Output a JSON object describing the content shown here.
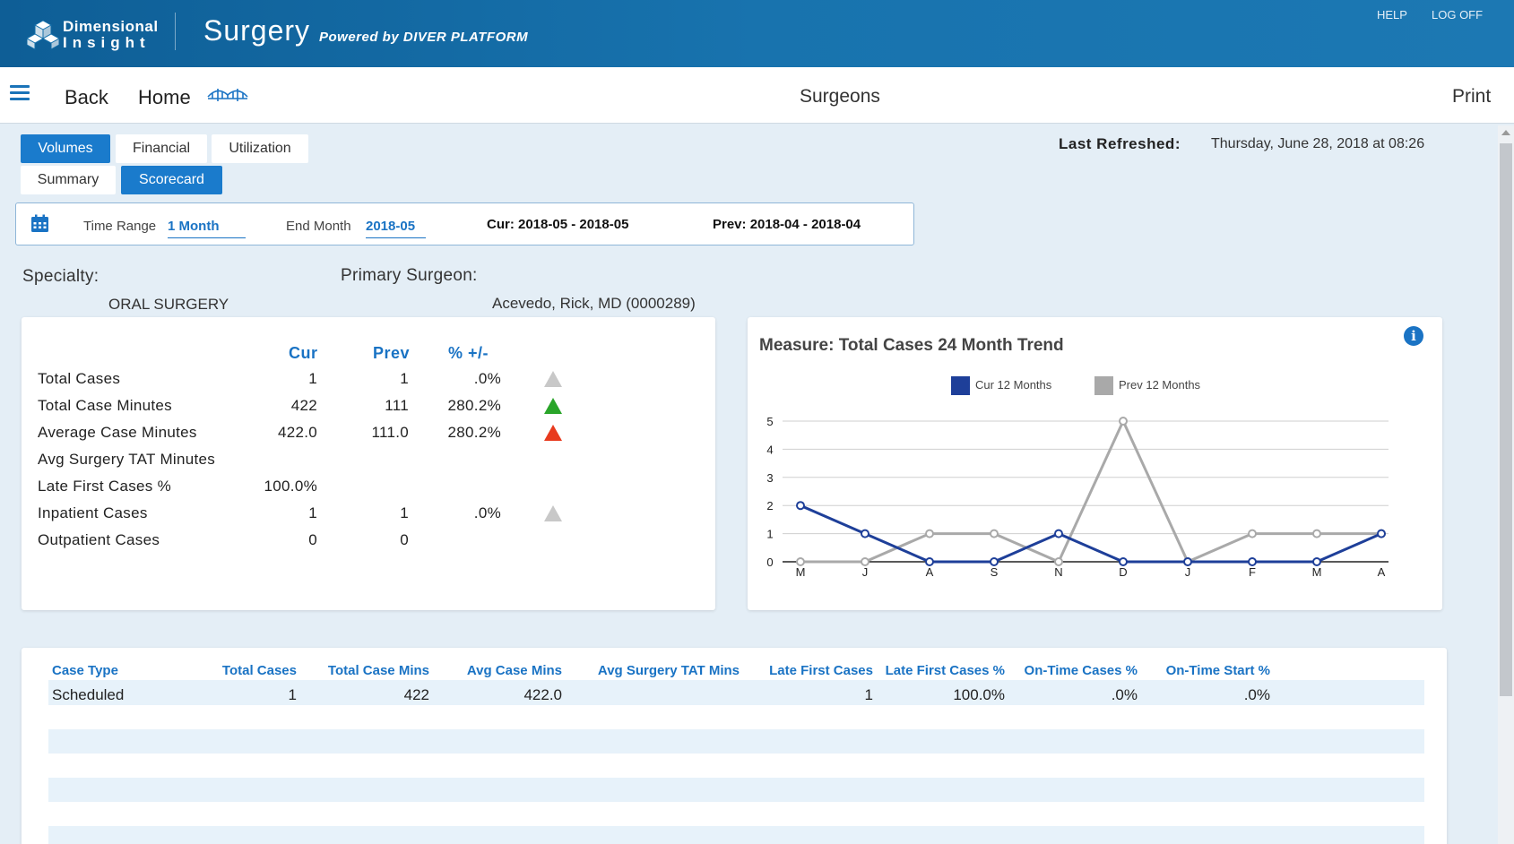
{
  "banner": {
    "logo_line1": "Dimensional",
    "logo_line2": "Insight",
    "app_title": "Surgery",
    "powered_by": "Powered by DIVER PLATFORM",
    "help": "HELP",
    "log_off": "LOG OFF",
    "color": "#1570ab"
  },
  "nav": {
    "back": "Back",
    "home": "Home",
    "page_title": "Surgeons",
    "print": "Print"
  },
  "tabs": {
    "row1": [
      {
        "label": "Volumes",
        "active": true
      },
      {
        "label": "Financial",
        "active": false
      },
      {
        "label": "Utilization",
        "active": false
      }
    ],
    "row2": [
      {
        "label": "Summary",
        "active": false
      },
      {
        "label": "Scorecard",
        "active": true
      }
    ]
  },
  "refresh": {
    "label": "Last Refreshed:",
    "value": "Thursday, June 28, 2018 at 08:26"
  },
  "filters": {
    "time_range_label": "Time Range",
    "time_range_value": "1 Month",
    "end_month_label": "End Month",
    "end_month_value": "2018-05",
    "cur": "Cur: 2018-05 - 2018-05",
    "prev": "Prev: 2018-04 - 2018-04"
  },
  "selection": {
    "specialty_label": "Specialty:",
    "specialty_value": "ORAL SURGERY",
    "surgeon_label": "Primary Surgeon:",
    "surgeon_value": "Acevedo, Rick, MD (0000289)"
  },
  "scorecard": {
    "headers": [
      "Cur",
      "Prev",
      "% +/-"
    ],
    "rows": [
      {
        "label": "Total Cases",
        "cur": "1",
        "prev": "1",
        "pct": ".0%",
        "trend": "flat"
      },
      {
        "label": "Total Case Minutes",
        "cur": "422",
        "prev": "111",
        "pct": "280.2%",
        "trend": "up-good"
      },
      {
        "label": "Average Case Minutes",
        "cur": "422.0",
        "prev": "111.0",
        "pct": "280.2%",
        "trend": "up-bad"
      },
      {
        "label": "Avg Surgery TAT Minutes",
        "cur": "",
        "prev": "",
        "pct": "",
        "trend": ""
      },
      {
        "label": "Late First Cases %",
        "cur": "100.0%",
        "prev": "",
        "pct": "",
        "trend": ""
      },
      {
        "label": "Inpatient Cases",
        "cur": "1",
        "prev": "1",
        "pct": ".0%",
        "trend": "flat"
      },
      {
        "label": "Outpatient Cases",
        "cur": "0",
        "prev": "0",
        "pct": "",
        "trend": ""
      }
    ],
    "trend_colors": {
      "flat": "#c8c8c8",
      "up-good": "#2aa52a",
      "up-bad": "#e83a1e"
    }
  },
  "chart": {
    "title": "Measure: Total Cases  24 Month Trend",
    "legend": [
      "Cur 12 Months",
      "Prev 12 Months"
    ]
  },
  "chart_data": {
    "type": "line",
    "title": "Measure: Total Cases  24 Month Trend",
    "x": [
      "M",
      "J",
      "A",
      "S",
      "N",
      "D",
      "J",
      "F",
      "M",
      "A"
    ],
    "yticks": [
      0,
      1,
      2,
      3,
      4,
      5
    ],
    "ylim": [
      0,
      5
    ],
    "grid": true,
    "legend_position": "top",
    "series": [
      {
        "name": "Cur 12 Months",
        "color": "#1e3f99",
        "values": [
          2,
          1,
          0,
          0,
          1,
          0,
          0,
          0,
          0,
          1
        ]
      },
      {
        "name": "Prev 12 Months",
        "color": "#a9a9a9",
        "values": [
          0,
          0,
          1,
          1,
          0,
          5,
          0,
          1,
          1,
          1
        ]
      }
    ]
  },
  "case_table": {
    "headers": [
      "Case Type",
      "Total Cases",
      "Total Case Mins",
      "Avg Case Mins",
      "Avg Surgery TAT Mins",
      "Late First Cases",
      "Late First Cases %",
      "On-Time Cases %",
      "On-Time Start %"
    ],
    "rows": [
      [
        "Scheduled",
        "1",
        "422",
        "422.0",
        "",
        "1",
        "100.0%",
        ".0%",
        ".0%"
      ]
    ]
  }
}
